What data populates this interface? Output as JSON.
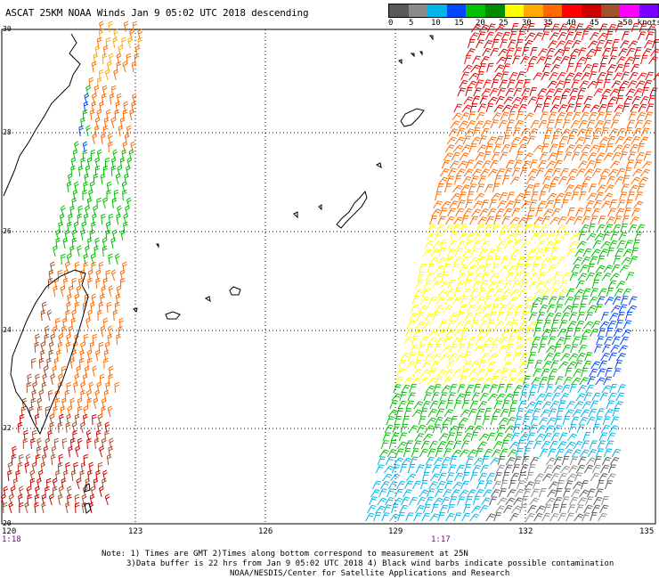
{
  "header": {
    "title": "ASCAT 25KM NOAA Winds  Jan  9 05:02 UTC 2018 descending"
  },
  "legend": {
    "colors": [
      "#5a5a5a",
      "#8a8a8a",
      "#00b4e6",
      "#0046ff",
      "#00c000",
      "#008a00",
      "#ffff00",
      "#ffaa00",
      "#ff6a00",
      "#ff0000",
      "#cc0000",
      "#a0522d",
      "#ff00ff",
      "#7a00ff",
      "#3a0070"
    ],
    "labels": [
      "0",
      "5",
      "10",
      "15",
      "20",
      "25",
      "30",
      "35",
      "40",
      "45",
      ">50 knots"
    ]
  },
  "map": {
    "lat_labels": [
      "30",
      "28",
      "26",
      "24",
      "22",
      "20"
    ],
    "lon_labels": [
      "120",
      "123",
      "126",
      "129",
      "132",
      "135"
    ],
    "pass_times": [
      "1:18",
      "1:17"
    ]
  },
  "notes": {
    "line1": "Note: 1) Times are GMT 2)Times along bottom correspond to measurement at 25N",
    "line2": "3)Data buffer is 22 hrs from Jan  9 05:02 UTC 2018 4) Black wind barbs indicate possible contamination",
    "line3": "NOAA/NESDIS/Center for Satellite Applications and Research"
  }
}
